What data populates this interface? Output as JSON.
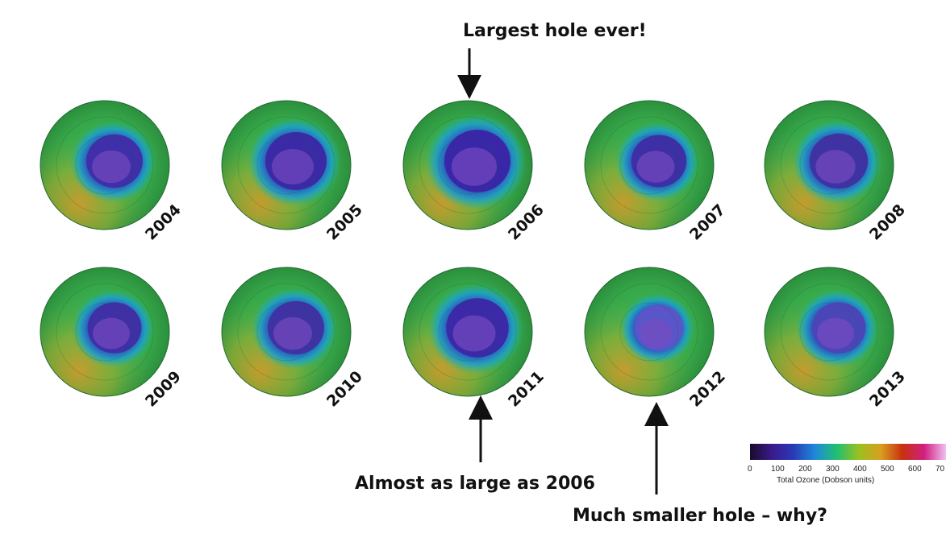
{
  "annotations": {
    "largest": "Largest hole ever!",
    "almost": "Almost as large as 2006",
    "smaller": "Much smaller hole – why?"
  },
  "maps": [
    {
      "year": "2004",
      "hole_color": "#3f2fa8",
      "hole_scale": 0.92
    },
    {
      "year": "2005",
      "hole_color": "#3b2aa6",
      "hole_scale": 1.0
    },
    {
      "year": "2006",
      "hole_color": "#3a27a8",
      "hole_scale": 1.08
    },
    {
      "year": "2007",
      "hole_color": "#3d2fa6",
      "hole_scale": 0.9
    },
    {
      "year": "2008",
      "hole_color": "#3f33a4",
      "hole_scale": 0.95
    },
    {
      "year": "2009",
      "hole_color": "#3f30a6",
      "hole_scale": 0.88
    },
    {
      "year": "2010",
      "hole_color": "#3f33a4",
      "hole_scale": 0.92
    },
    {
      "year": "2011",
      "hole_color": "#3b29a8",
      "hole_scale": 1.02
    },
    {
      "year": "2012",
      "hole_color": "#5a55c8",
      "hole_scale": 0.8
    },
    {
      "year": "2013",
      "hole_color": "#4a46b8",
      "hole_scale": 0.88
    }
  ],
  "legend": {
    "caption": "Total Ozone (Dobson units)",
    "ticks": [
      "0",
      "100",
      "200",
      "300",
      "400",
      "500",
      "600",
      "70"
    ],
    "colors": [
      "#1a0a2e",
      "#3a1a8a",
      "#2a3ab8",
      "#1e8ad8",
      "#22c070",
      "#9ac020",
      "#d8a020",
      "#c83010",
      "#d02080",
      "#f0c0f0"
    ]
  }
}
